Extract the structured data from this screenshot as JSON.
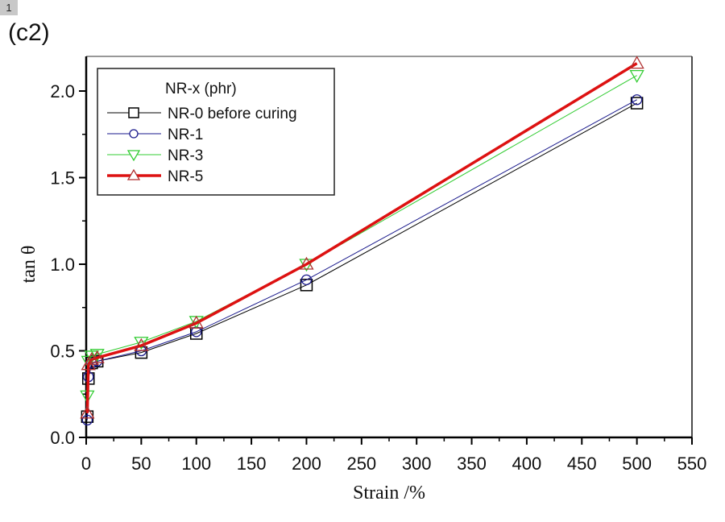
{
  "badge": "1",
  "panel_label": "(c2)",
  "chart_data": {
    "type": "line",
    "title": "",
    "xlabel": "Strain /%",
    "ylabel": "tan θ",
    "xlim": [
      0,
      550
    ],
    "ylim": [
      0.0,
      2.2
    ],
    "xticks": [
      0,
      50,
      100,
      150,
      200,
      250,
      300,
      350,
      400,
      450,
      500,
      550
    ],
    "xtick_labels": [
      "0",
      "50",
      "100",
      "150",
      "200",
      "250",
      "300",
      "350",
      "400",
      "450",
      "500",
      "550"
    ],
    "yticks": [
      0.0,
      0.5,
      1.0,
      1.5,
      2.0
    ],
    "ytick_labels": [
      "0.0",
      "0.5",
      "1.0",
      "1.5",
      "2.0"
    ],
    "grid": false,
    "legend_title": "NR-x (phr)",
    "legend_position": "top-left",
    "x": [
      1,
      2,
      5,
      10,
      50,
      100,
      200,
      500
    ],
    "series": [
      {
        "name": "NR-0 before curing",
        "marker": "square",
        "color": "#000000",
        "line_width": 1,
        "values": [
          0.12,
          0.34,
          0.43,
          0.44,
          0.49,
          0.6,
          0.88,
          1.93
        ]
      },
      {
        "name": "NR-1",
        "marker": "circle",
        "color": "#1a1a8c",
        "line_width": 1,
        "values": [
          0.1,
          0.35,
          0.43,
          0.44,
          0.5,
          0.61,
          0.91,
          1.95
        ]
      },
      {
        "name": "NR-3",
        "marker": "triangle-down",
        "color": "#33cc33",
        "line_width": 1,
        "values": [
          0.24,
          0.44,
          0.47,
          0.48,
          0.55,
          0.67,
          1.0,
          2.09
        ]
      },
      {
        "name": "NR-5",
        "marker": "triangle-up",
        "color": "#dd1111",
        "line_width": 3.5,
        "values": [
          0.14,
          0.42,
          0.45,
          0.46,
          0.53,
          0.66,
          1.0,
          2.16
        ]
      }
    ]
  }
}
